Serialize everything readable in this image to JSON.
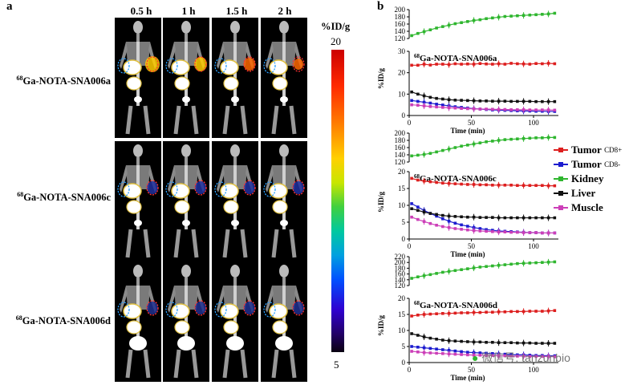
{
  "panel_a": {
    "letter": "a",
    "times": [
      "0.5 h",
      "1 h",
      "1.5 h",
      "2 h"
    ],
    "rows": [
      {
        "sup": "68",
        "name": "Ga-NOTA-SNA006a"
      },
      {
        "sup": "68",
        "name": "Ga-NOTA-SNA006c"
      },
      {
        "sup": "68",
        "name": "Ga-NOTA-SNA006d"
      }
    ],
    "colorbar": {
      "unit": "%ID/g",
      "max": "20",
      "min": "5"
    }
  },
  "panel_b": {
    "letter": "b",
    "legend": [
      {
        "label": "Tumor",
        "sub": "CD8+",
        "color": "#dd1f1f"
      },
      {
        "label": "Tumor",
        "sub": "CD8-",
        "color": "#1c1ccf"
      },
      {
        "label": "Kidney",
        "sub": "",
        "color": "#2fb62f"
      },
      {
        "label": "Liver",
        "sub": "",
        "color": "#111111"
      },
      {
        "label": "Muscle",
        "sub": "",
        "color": "#cc3fb8"
      }
    ]
  },
  "chart_data": [
    {
      "type": "line",
      "title_sup": "68",
      "title": "Ga-NOTA-SNA006a",
      "xlabel": "Time (min)",
      "ylabel": "%ID/g",
      "xlim": [
        0,
        120
      ],
      "xticks": [
        "0",
        "50",
        "100"
      ],
      "ylim_upper": [
        120,
        200
      ],
      "yticks_upper": [
        "120",
        "140",
        "160",
        "180",
        "200"
      ],
      "ylim_lower": [
        0,
        30
      ],
      "yticks_lower": [
        "0",
        "10",
        "20",
        "30"
      ],
      "x": [
        2,
        7,
        12,
        17,
        22,
        27,
        32,
        37,
        42,
        47,
        52,
        57,
        62,
        67,
        72,
        77,
        82,
        87,
        92,
        97,
        102,
        107,
        112,
        117
      ],
      "series": [
        {
          "name": "Tumor CD8+",
          "color": "#dd1f1f",
          "values": [
            23.5,
            23.5,
            24,
            23.6,
            24,
            24,
            23.8,
            24.2,
            24,
            24.1,
            24,
            24.3,
            24.1,
            24,
            24.2,
            24,
            24.4,
            24.2,
            24.1,
            24,
            24.3,
            24.2,
            24.4,
            24.2
          ]
        },
        {
          "name": "Tumor CD8-",
          "color": "#1c1ccf",
          "values": [
            7,
            6.6,
            6.2,
            5.8,
            5.3,
            4.9,
            4.5,
            4.1,
            3.8,
            3.5,
            3.2,
            3,
            2.8,
            2.6,
            2.5,
            2.4,
            2.3,
            2.2,
            2.1,
            2.1,
            2,
            2,
            1.9,
            1.9
          ]
        },
        {
          "name": "Kidney",
          "color": "#2fb62f",
          "values": [
            128,
            134,
            139,
            144,
            149,
            153,
            157,
            161,
            164,
            167,
            170,
            172,
            175,
            177,
            179,
            181,
            182,
            183,
            184,
            185,
            186,
            187,
            188,
            190
          ]
        },
        {
          "name": "Liver",
          "color": "#111111",
          "values": [
            11,
            10,
            9.2,
            8.5,
            8,
            7.7,
            7.4,
            7.2,
            7.1,
            7,
            6.9,
            6.8,
            6.8,
            6.7,
            6.7,
            6.7,
            6.6,
            6.6,
            6.6,
            6.6,
            6.5,
            6.5,
            6.5,
            6.5
          ]
        },
        {
          "name": "Muscle",
          "color": "#cc3fb8",
          "values": [
            5,
            4.8,
            4.5,
            4.2,
            4,
            3.8,
            3.6,
            3.5,
            3.3,
            3.2,
            3.1,
            3,
            3,
            2.9,
            2.8,
            2.8,
            2.7,
            2.7,
            2.7,
            2.6,
            2.6,
            2.6,
            2.6,
            2.5
          ]
        }
      ]
    },
    {
      "type": "line",
      "title_sup": "68",
      "title": "Ga-NOTA-SNA006c",
      "xlabel": "Time (min)",
      "ylabel": "%ID/g",
      "xlim": [
        0,
        120
      ],
      "xticks": [
        "0",
        "50",
        "100"
      ],
      "ylim_upper": [
        120,
        200
      ],
      "yticks_upper": [
        "120",
        "140",
        "160",
        "180",
        "200"
      ],
      "ylim_lower": [
        0,
        20
      ],
      "yticks_lower": [
        "0",
        "5",
        "10",
        "15",
        "20"
      ],
      "x": [
        2,
        7,
        12,
        17,
        22,
        27,
        32,
        37,
        42,
        47,
        52,
        57,
        62,
        67,
        72,
        77,
        82,
        87,
        92,
        97,
        102,
        107,
        112,
        117
      ],
      "series": [
        {
          "name": "Tumor CD8+",
          "color": "#dd1f1f",
          "values": [
            18,
            17.5,
            17.2,
            17,
            16.8,
            16.6,
            16.5,
            16.4,
            16.3,
            16.2,
            16.2,
            16.1,
            16.1,
            16,
            16,
            16,
            16,
            15.9,
            15.9,
            15.9,
            15.9,
            15.9,
            15.8,
            15.8
          ]
        },
        {
          "name": "Tumor CD8-",
          "color": "#1c1ccf",
          "values": [
            10.5,
            9.5,
            8.5,
            7.6,
            6.8,
            6,
            5.3,
            4.7,
            4.2,
            3.8,
            3.4,
            3.1,
            2.8,
            2.6,
            2.4,
            2.3,
            2.2,
            2.1,
            2,
            1.9,
            1.9,
            1.8,
            1.8,
            1.8
          ]
        },
        {
          "name": "Kidney",
          "color": "#2fb62f",
          "values": [
            137,
            139,
            141,
            144,
            148,
            152,
            156,
            160,
            164,
            167,
            170,
            173,
            176,
            178,
            180,
            182,
            183,
            184,
            185,
            186,
            187,
            187,
            188,
            188
          ]
        },
        {
          "name": "Liver",
          "color": "#111111",
          "values": [
            9,
            8.5,
            8,
            7.6,
            7.3,
            7,
            6.8,
            6.7,
            6.6,
            6.5,
            6.5,
            6.4,
            6.4,
            6.4,
            6.3,
            6.3,
            6.3,
            6.3,
            6.3,
            6.3,
            6.3,
            6.3,
            6.3,
            6.3
          ]
        },
        {
          "name": "Muscle",
          "color": "#cc3fb8",
          "values": [
            6.5,
            5.8,
            5.2,
            4.6,
            4.1,
            3.7,
            3.4,
            3.1,
            2.9,
            2.7,
            2.5,
            2.4,
            2.3,
            2.2,
            2.1,
            2.1,
            2,
            2,
            1.9,
            1.9,
            1.9,
            1.8,
            1.8,
            1.8
          ]
        }
      ]
    },
    {
      "type": "line",
      "title_sup": "68",
      "title": "Ga-NOTA-SNA006d",
      "xlabel": "Time (min)",
      "ylabel": "%ID/g",
      "xlim": [
        0,
        120
      ],
      "xticks": [
        "0",
        "50",
        "100"
      ],
      "ylim_upper": [
        120,
        220
      ],
      "yticks_upper": [
        "120",
        "140",
        "160",
        "180",
        "200",
        "220"
      ],
      "ylim_lower": [
        0,
        20
      ],
      "yticks_lower": [
        "0",
        "5",
        "10",
        "15",
        "20"
      ],
      "x": [
        2,
        7,
        12,
        17,
        22,
        27,
        32,
        37,
        42,
        47,
        52,
        57,
        62,
        67,
        72,
        77,
        82,
        87,
        92,
        97,
        102,
        107,
        112,
        117
      ],
      "series": [
        {
          "name": "Tumor CD8+",
          "color": "#dd1f1f",
          "values": [
            14.5,
            14.8,
            15,
            15.1,
            15.2,
            15.3,
            15.3,
            15.4,
            15.5,
            15.5,
            15.6,
            15.6,
            15.7,
            15.7,
            15.8,
            15.8,
            15.9,
            15.9,
            15.9,
            16,
            16,
            16,
            16.1,
            16.2
          ]
        },
        {
          "name": "Tumor CD8-",
          "color": "#1c1ccf",
          "values": [
            5,
            4.8,
            4.6,
            4.4,
            4.2,
            4,
            3.8,
            3.6,
            3.4,
            3.2,
            3.1,
            3,
            2.9,
            2.8,
            2.7,
            2.6,
            2.5,
            2.4,
            2.4,
            2.3,
            2.2,
            2.2,
            2.1,
            2.1
          ]
        },
        {
          "name": "Kidney",
          "color": "#2fb62f",
          "values": [
            145,
            150,
            154,
            158,
            162,
            166,
            169,
            172,
            175,
            178,
            181,
            184,
            186,
            188,
            190,
            192,
            194,
            196,
            197,
            198,
            199,
            200,
            201,
            202
          ]
        },
        {
          "name": "Liver",
          "color": "#111111",
          "values": [
            9,
            8.5,
            8,
            7.6,
            7.3,
            7,
            6.8,
            6.7,
            6.6,
            6.5,
            6.4,
            6.4,
            6.3,
            6.3,
            6.2,
            6.2,
            6.2,
            6.1,
            6.1,
            6.1,
            6,
            6,
            6,
            6
          ]
        },
        {
          "name": "Muscle",
          "color": "#cc3fb8",
          "values": [
            3.5,
            3.3,
            3.1,
            3,
            2.9,
            2.8,
            2.7,
            2.6,
            2.5,
            2.4,
            2.3,
            2.3,
            2.2,
            2.2,
            2.1,
            2.1,
            2,
            2,
            2,
            1.9,
            1.9,
            1.9,
            1.9,
            1.8
          ]
        }
      ]
    }
  ],
  "watermark": "微信号: tanzunbio"
}
